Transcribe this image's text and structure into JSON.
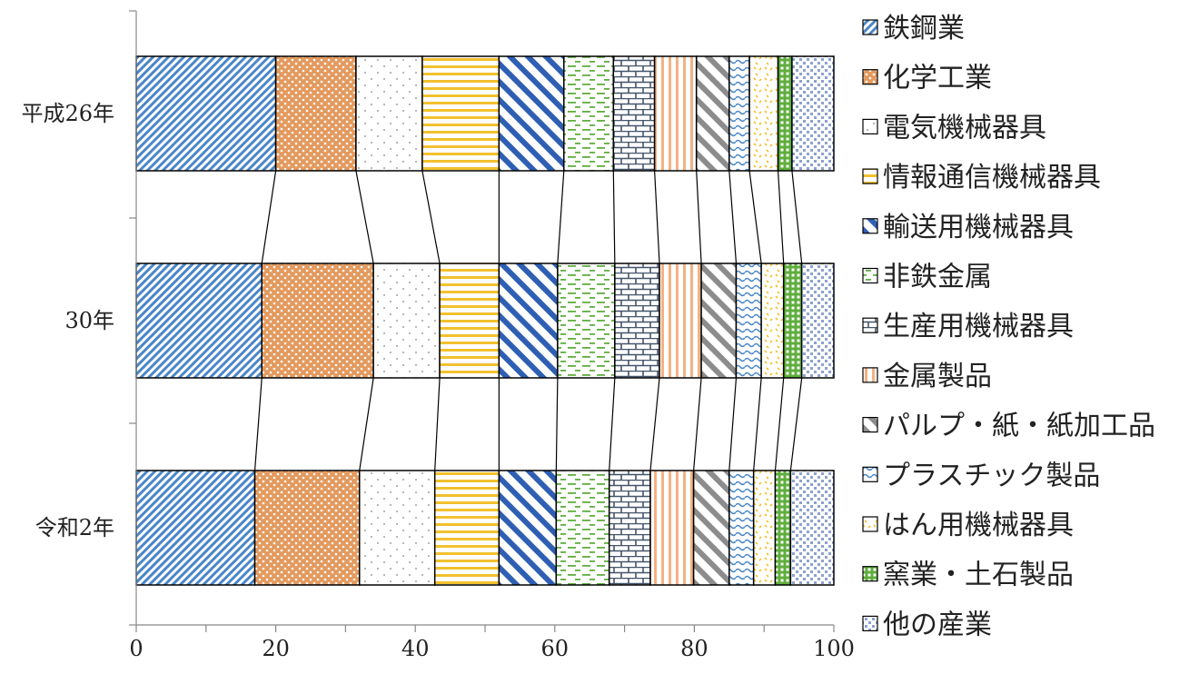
{
  "chart_data": {
    "type": "bar",
    "orientation": "horizontal",
    "stacked": true,
    "percent_stacked": true,
    "categories": [
      "平成26年",
      "30年",
      "令和2年"
    ],
    "xlim": [
      0,
      100
    ],
    "xticks": [
      "0",
      "20",
      "40",
      "60",
      "80",
      "100"
    ],
    "grid": false,
    "series_connector_lines": true,
    "legend_position": "right",
    "series": [
      {
        "name": "鉄鋼業",
        "values": [
          20.0,
          18.0,
          17.0
        ],
        "color": "#4a86c8",
        "pattern": "diag-fine"
      },
      {
        "name": "化学工業",
        "values": [
          11.5,
          16.0,
          15.0
        ],
        "color": "#e39a5f",
        "pattern": "dots-dense"
      },
      {
        "name": "電気機械器具",
        "values": [
          9.5,
          9.5,
          10.8
        ],
        "color": "#a0a0a0",
        "pattern": "dots-sparse"
      },
      {
        "name": "情報通信機械器具",
        "values": [
          11.0,
          8.5,
          9.2
        ],
        "color": "#f2c12e",
        "pattern": "hlines"
      },
      {
        "name": "輸送用機械器具",
        "values": [
          9.3,
          8.4,
          8.2
        ],
        "color": "#2f5fb3",
        "pattern": "diag-wide"
      },
      {
        "name": "非鉄金属",
        "values": [
          7.1,
          8.2,
          7.6
        ],
        "color": "#5fae3d",
        "pattern": "dashes"
      },
      {
        "name": "生産用機械器具",
        "values": [
          5.9,
          6.4,
          5.9
        ],
        "color": "#44546a",
        "pattern": "bricks"
      },
      {
        "name": "金属製品",
        "values": [
          6.0,
          6.0,
          6.2
        ],
        "color": "#f4b183",
        "pattern": "vlines"
      },
      {
        "name": "パルプ・紙・紙加工品",
        "values": [
          4.7,
          5.0,
          5.1
        ],
        "color": "#8c8c8c",
        "pattern": "diag-wide"
      },
      {
        "name": "プラスチック製品",
        "values": [
          2.9,
          3.6,
          3.5
        ],
        "color": "#4a86c8",
        "pattern": "waves"
      },
      {
        "name": "はん用機械器具",
        "values": [
          4.1,
          3.2,
          3.1
        ],
        "color": "#f2c12e",
        "pattern": "confetti"
      },
      {
        "name": "窯業・土石製品",
        "values": [
          2.0,
          2.6,
          2.2
        ],
        "color": "#5fae3d",
        "pattern": "grid"
      },
      {
        "name": "他の産業",
        "values": [
          6.0,
          4.6,
          6.2
        ],
        "color": "#8ea2cf",
        "pattern": "checks"
      }
    ]
  }
}
